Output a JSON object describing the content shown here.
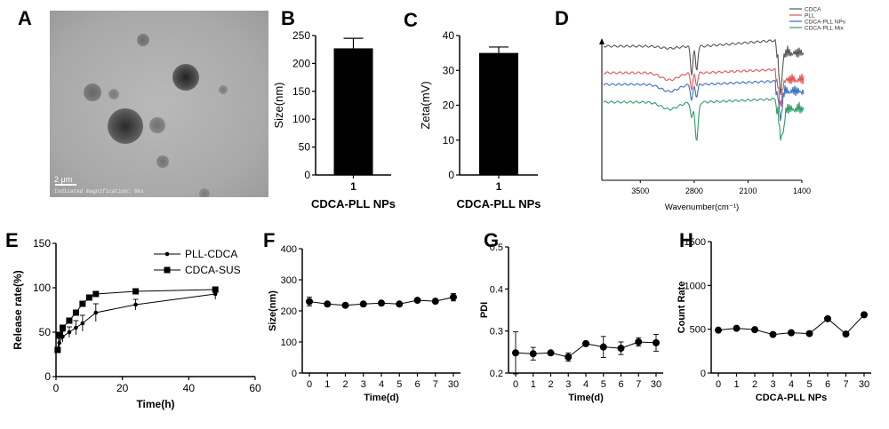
{
  "panels": {
    "A": {
      "letter": "A",
      "scale_bar": "2 μm",
      "caption": "Indicated magnification: 6ks"
    },
    "B": {
      "letter": "B"
    },
    "C": {
      "letter": "C"
    },
    "D": {
      "letter": "D"
    },
    "E": {
      "letter": "E"
    },
    "F": {
      "letter": "F"
    },
    "G": {
      "letter": "G"
    },
    "H": {
      "letter": "H"
    }
  },
  "chart_data": [
    {
      "panel": "B",
      "type": "bar",
      "categories": [
        "1"
      ],
      "values": [
        227
      ],
      "error": [
        18
      ],
      "ylabel": "Size(nm)",
      "xlabel": "CDCA-PLL NPs",
      "ylim": [
        0,
        250
      ],
      "yticks": [
        0,
        50,
        100,
        150,
        200,
        250
      ],
      "colors": {
        "bar": "#000000"
      }
    },
    {
      "panel": "C",
      "type": "bar",
      "categories": [
        "1"
      ],
      "values": [
        35
      ],
      "error": [
        1.7
      ],
      "ylabel": "Zeta(mV)",
      "xlabel": "CDCA-PLL NPs",
      "ylim": [
        0,
        40
      ],
      "yticks": [
        0,
        10,
        20,
        30,
        40
      ],
      "colors": {
        "bar": "#000000"
      }
    },
    {
      "panel": "D",
      "type": "line",
      "xlabel": "Wavenumber(cm⁻¹)",
      "xticks": [
        3500,
        2800,
        2100,
        1400
      ],
      "xlim": [
        4000,
        1400
      ],
      "series": [
        {
          "name": "CDCA",
          "color": "#555555"
        },
        {
          "name": "PLL",
          "color": "#e05555"
        },
        {
          "name": "CDCA-PLL NPs",
          "color": "#3a6fc4"
        },
        {
          "name": "CDCA-PLL Mix",
          "color": "#2e9e63"
        }
      ]
    },
    {
      "panel": "E",
      "type": "line",
      "ylabel": "Release rate(%)",
      "xlabel": "Time(h)",
      "ylim": [
        0,
        150
      ],
      "yticks": [
        0,
        50,
        100,
        150
      ],
      "xlim": [
        0,
        60
      ],
      "xticks": [
        0,
        20,
        40,
        60
      ],
      "series": [
        {
          "name": "PLL-CDCA",
          "marker": "dot",
          "x": [
            0.5,
            1,
            2,
            4,
            6,
            8,
            12,
            24,
            48
          ],
          "y": [
            30,
            38,
            45,
            50,
            55,
            60,
            72,
            81,
            93
          ],
          "err": [
            3,
            5,
            6,
            6,
            8,
            9,
            10,
            6,
            6
          ]
        },
        {
          "name": "CDCA-SUS",
          "marker": "square",
          "x": [
            0.5,
            1,
            2,
            4,
            6,
            8,
            10,
            12,
            24,
            48
          ],
          "y": [
            30,
            47,
            55,
            63,
            72,
            82,
            89,
            93,
            96,
            98
          ],
          "err": [
            3,
            3,
            3,
            3,
            3,
            2,
            2,
            2,
            2,
            2
          ]
        }
      ]
    },
    {
      "panel": "F",
      "type": "line",
      "ylabel": "Size(nm)",
      "xlabel": "Time(d)",
      "ylim": [
        0,
        400
      ],
      "yticks": [
        0,
        100,
        200,
        300,
        400
      ],
      "categories": [
        "0",
        "1",
        "2",
        "3",
        "4",
        "5",
        "6",
        "7",
        "30"
      ],
      "values": [
        230,
        222,
        218,
        222,
        225,
        222,
        234,
        231,
        244
      ],
      "error": [
        14,
        5,
        4,
        4,
        4,
        5,
        5,
        5,
        12
      ]
    },
    {
      "panel": "G",
      "type": "line",
      "ylabel": "PDI",
      "xlabel": "Time(d)",
      "ylim": [
        0.2,
        0.5
      ],
      "yticks": [
        0.2,
        0.3,
        0.4,
        0.5
      ],
      "categories": [
        "0",
        "1",
        "2",
        "3",
        "4",
        "5",
        "6",
        "7",
        "30"
      ],
      "values": [
        0.248,
        0.246,
        0.248,
        0.238,
        0.27,
        0.262,
        0.259,
        0.274,
        0.272
      ],
      "error": [
        0.05,
        0.015,
        0.005,
        0.01,
        0.005,
        0.025,
        0.015,
        0.01,
        0.02
      ]
    },
    {
      "panel": "H",
      "type": "line",
      "ylabel": "Count Rate",
      "xlabel": "CDCA-PLL NPs",
      "ylim": [
        0,
        1500
      ],
      "yticks": [
        0,
        500,
        1000,
        1500
      ],
      "categories": [
        "0",
        "1",
        "2",
        "3",
        "4",
        "5",
        "6",
        "7",
        "30"
      ],
      "values": [
        490,
        510,
        495,
        440,
        460,
        450,
        620,
        445,
        665
      ]
    }
  ]
}
